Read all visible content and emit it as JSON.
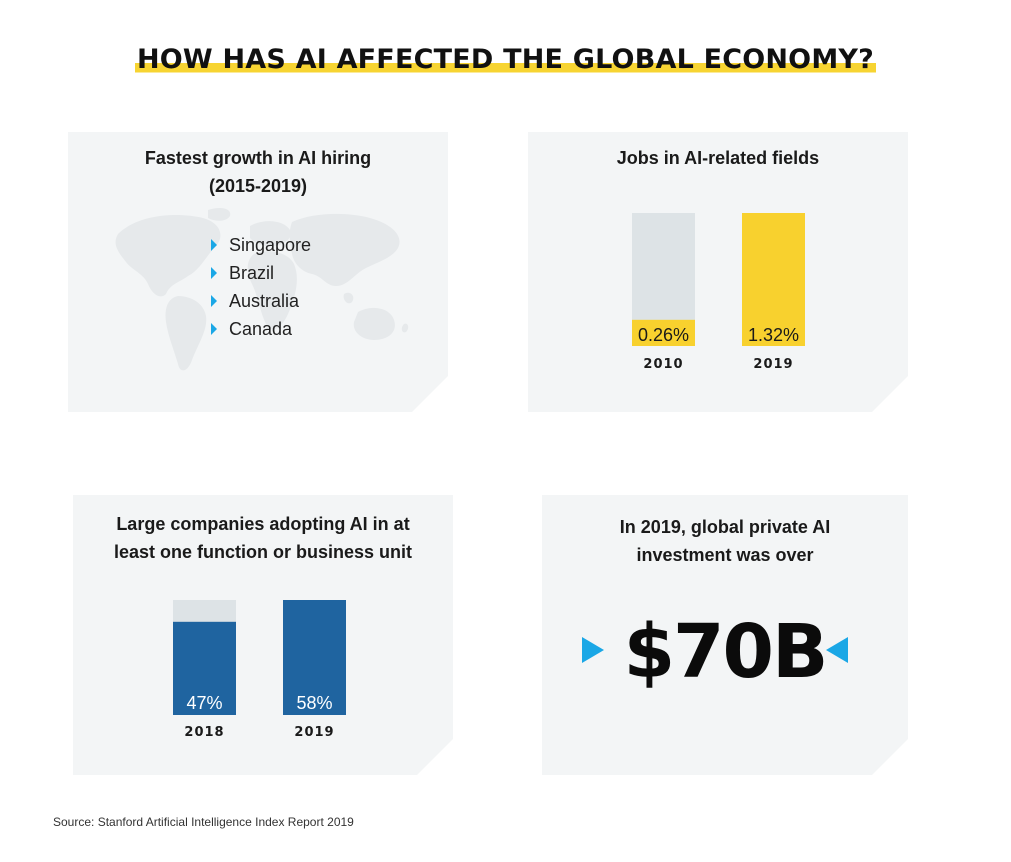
{
  "title": "HOW HAS AI AFFECTED THE GLOBAL ECONOMY?",
  "source": "Source: Stanford Artificial Intelligence Index Report 2019",
  "colors": {
    "highlight": "#f7d432",
    "accent": "#1aa7e6",
    "gray_bar": "#dde3e6",
    "yellow_bar": "#f8d12e",
    "blue_bar": "#1f64a0",
    "panel": "#f3f5f6"
  },
  "hiring": {
    "title_line1": "Fastest growth in AI hiring",
    "title_line2": "(2015-2019)",
    "countries": [
      "Singapore",
      "Brazil",
      "Australia",
      "Canada"
    ],
    "bullet_icon": "triangle-right-icon",
    "background_icon": "world-map-icon"
  },
  "investment": {
    "title_line1": "In 2019, global private AI",
    "title_line2": "investment was over",
    "value": "$70B"
  },
  "chart_data": [
    {
      "type": "bar",
      "title": "Jobs in AI-related fields",
      "categories": [
        "2010",
        "2019"
      ],
      "values": [
        0.26,
        1.32
      ],
      "value_labels": [
        "0.26%",
        "1.32%"
      ],
      "unit": "%",
      "bar_colors": [
        "#dde3e6",
        "#f8d12e"
      ],
      "label_background": "#f8d12e",
      "grid": false
    },
    {
      "type": "bar",
      "title_line1": "Large companies adopting AI in at",
      "title_line2": "least one function or business unit",
      "categories": [
        "2018",
        "2019"
      ],
      "values": [
        47,
        58
      ],
      "value_labels": [
        "47%",
        "58%"
      ],
      "unit": "%",
      "bar_color": "#1f64a0",
      "track_color": "#dde3e6",
      "grid": false
    }
  ]
}
